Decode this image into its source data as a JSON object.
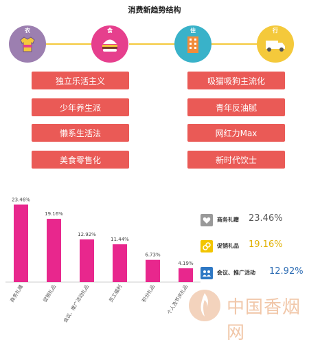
{
  "title": "消费新趋势结构",
  "categories_top": [
    {
      "label": "衣",
      "color": "#9c7fb0",
      "icon": "shirt-icon"
    },
    {
      "label": "食",
      "color": "#e63f8d",
      "icon": "burger-icon"
    },
    {
      "label": "住",
      "color": "#39b2c9",
      "icon": "building-icon"
    },
    {
      "label": "行",
      "color": "#f4c93b",
      "icon": "truck-icon"
    }
  ],
  "trends_left": [
    "独立乐活主义",
    "少年养生派",
    "懒系生活法",
    "美食零售化"
  ],
  "trends_right": [
    "吸猫吸狗主流化",
    "青年反油腻",
    "网红力Max",
    "新时代饮士"
  ],
  "colors": {
    "pill": "#ea5a56",
    "bar": "#e8278d",
    "connector": "#f4c93b"
  },
  "chart_data": {
    "type": "bar",
    "categories": [
      "商务礼赠",
      "促销礼品",
      "会议、推广活动礼品",
      "员工福利",
      "积分礼品",
      "个人及节庆礼品"
    ],
    "values": [
      23.46,
      19.16,
      12.92,
      11.44,
      6.73,
      4.19
    ],
    "value_labels": [
      "23.46%",
      "19.16%",
      "12.92%",
      "11.44%",
      "6.73%",
      "4.19%"
    ],
    "ylim": [
      0,
      25
    ]
  },
  "legend": [
    {
      "name": "商务礼赠",
      "value": "23.46%",
      "icon": "heart-icon",
      "icon_color": "#999999",
      "value_color": "#555555"
    },
    {
      "name": "促销礼品",
      "value": "19.16%",
      "icon": "link-icon",
      "icon_color": "#f2c500",
      "value_color": "#e0b000"
    },
    {
      "name": "会议、推广活动",
      "value": "12.92%",
      "icon": "people-icon",
      "icon_color": "#2e78c4",
      "value_color": "#2e6db4"
    }
  ],
  "watermark": "中国香烟网"
}
